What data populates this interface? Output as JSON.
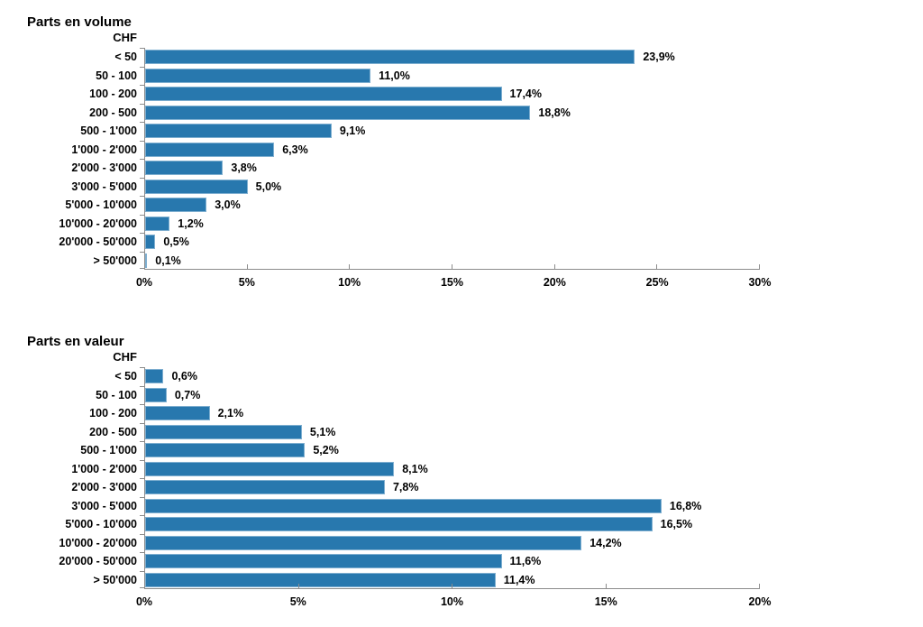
{
  "colors": {
    "bar_fill": "#2878AE",
    "bar_border": "#7FAFD0",
    "axis": "#8C8C8C",
    "text": "#000000",
    "background": "#FFFFFF"
  },
  "chart_data": [
    {
      "type": "bar",
      "orientation": "horizontal",
      "title": "Parts en volume",
      "unit_label": "CHF",
      "categories": [
        "< 50",
        "50 - 100",
        "100 - 200",
        "200 - 500",
        "500 - 1'000",
        "1'000 - 2'000",
        "2'000 - 3'000",
        "3'000 - 5'000",
        "5'000 - 10'000",
        "10'000 - 20'000",
        "20'000 - 50'000",
        "> 50'000"
      ],
      "values": [
        23.9,
        11.0,
        17.4,
        18.8,
        9.1,
        6.3,
        3.8,
        5.0,
        3.0,
        1.2,
        0.5,
        0.1
      ],
      "value_labels": [
        "23,9%",
        "11,0%",
        "17,4%",
        "18,8%",
        "9,1%",
        "6,3%",
        "3,8%",
        "5,0%",
        "3,0%",
        "1,2%",
        "0,5%",
        "0,1%"
      ],
      "xlim": [
        0,
        30
      ],
      "x_ticks": [
        "0%",
        "5%",
        "10%",
        "15%",
        "20%",
        "25%",
        "30%"
      ],
      "grid": false,
      "legend": null
    },
    {
      "type": "bar",
      "orientation": "horizontal",
      "title": "Parts en valeur",
      "unit_label": "CHF",
      "categories": [
        "< 50",
        "50 - 100",
        "100 - 200",
        "200 - 500",
        "500 - 1'000",
        "1'000 - 2'000",
        "2'000 - 3'000",
        "3'000 - 5'000",
        "5'000 - 10'000",
        "10'000 - 20'000",
        "20'000 - 50'000",
        "> 50'000"
      ],
      "values": [
        0.6,
        0.7,
        2.1,
        5.1,
        5.2,
        8.1,
        7.8,
        16.8,
        16.5,
        14.2,
        11.6,
        11.4
      ],
      "value_labels": [
        "0,6%",
        "0,7%",
        "2,1%",
        "5,1%",
        "5,2%",
        "8,1%",
        "7,8%",
        "16,8%",
        "16,5%",
        "14,2%",
        "11,6%",
        "11,4%"
      ],
      "xlim": [
        0,
        20
      ],
      "x_ticks": [
        "0%",
        "5%",
        "10%",
        "15%",
        "20%"
      ],
      "grid": false,
      "legend": null
    }
  ]
}
